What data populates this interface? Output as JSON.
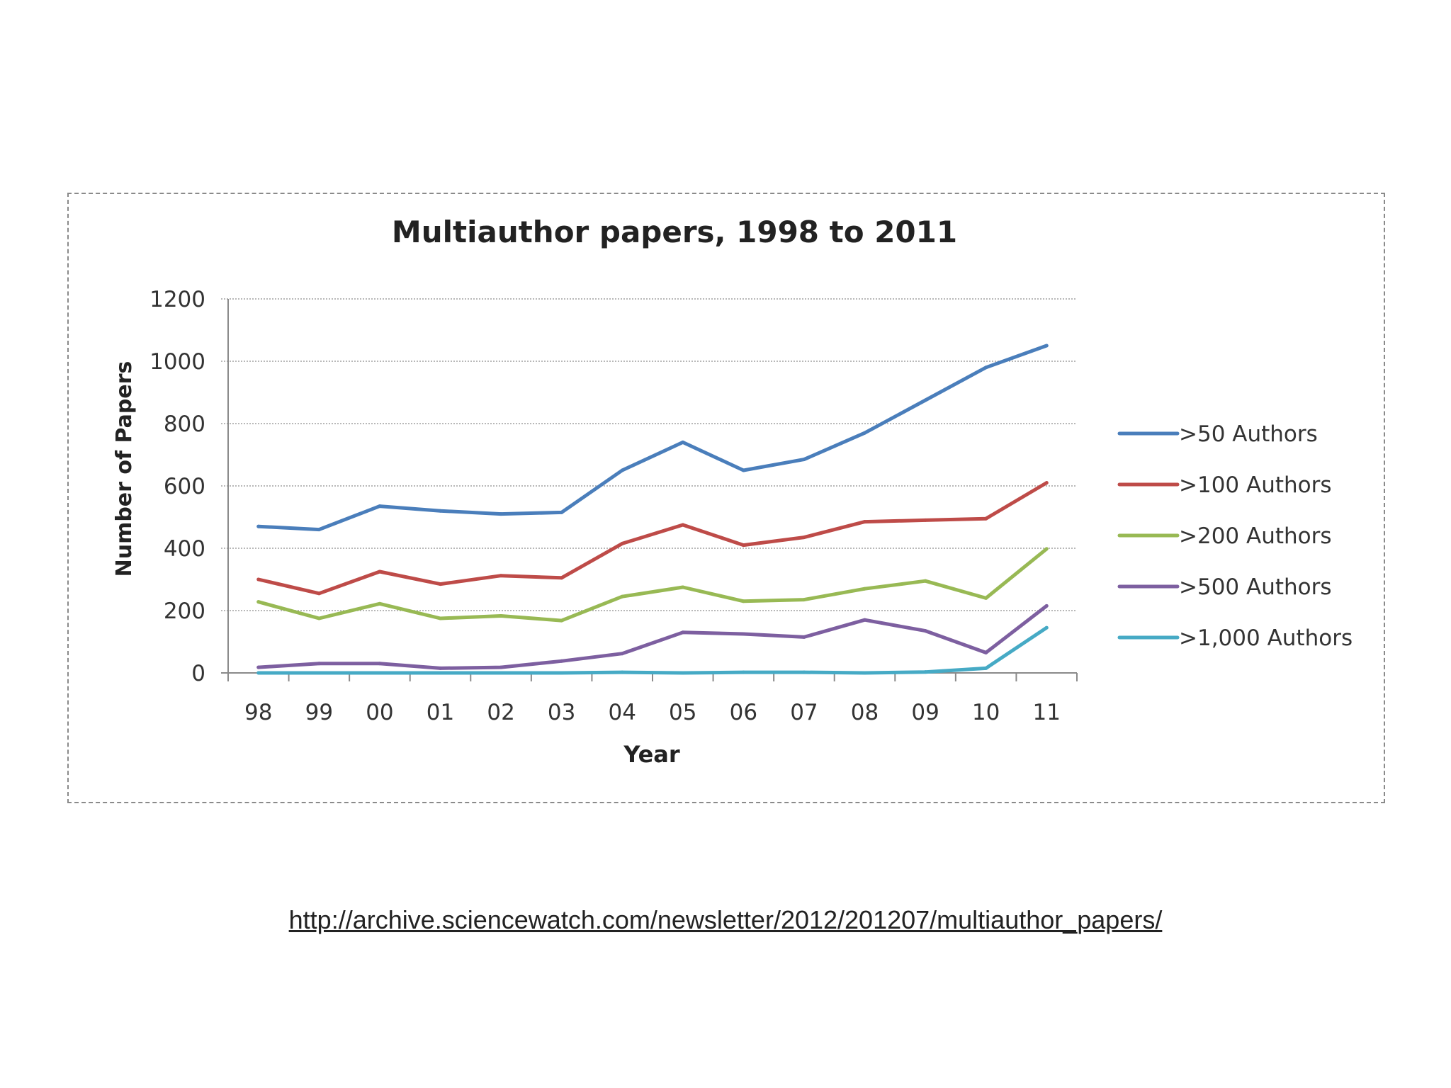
{
  "source_link": "http://archive.sciencewatch.com/newsletter/2012/201207/multiauthor_papers/",
  "chart_data": {
    "type": "line",
    "title": "Multiauthor papers, 1998 to 2011",
    "xlabel": "Year",
    "ylabel": "Number of Papers",
    "categories": [
      "98",
      "99",
      "00",
      "01",
      "02",
      "03",
      "04",
      "05",
      "06",
      "07",
      "08",
      "09",
      "10",
      "11"
    ],
    "ylim": [
      0,
      1200
    ],
    "yticks": [
      "0",
      "200",
      "400",
      "600",
      "800",
      "1000",
      "1200"
    ],
    "grid": true,
    "legend_position": "right",
    "series": [
      {
        "name": ">50 Authors",
        "color": "#4a7ebb",
        "values": [
          470,
          460,
          535,
          520,
          510,
          515,
          650,
          740,
          650,
          685,
          770,
          875,
          980,
          1050
        ]
      },
      {
        "name": ">100 Authors",
        "color": "#be4b48",
        "values": [
          300,
          255,
          325,
          285,
          312,
          305,
          415,
          475,
          410,
          435,
          485,
          490,
          495,
          610
        ]
      },
      {
        "name": ">200 Authors",
        "color": "#98b954",
        "values": [
          228,
          175,
          222,
          175,
          183,
          168,
          245,
          275,
          230,
          235,
          270,
          295,
          240,
          398
        ]
      },
      {
        "name": ">500 Authors",
        "color": "#7d5fa0",
        "values": [
          18,
          30,
          30,
          15,
          18,
          38,
          62,
          130,
          125,
          115,
          170,
          135,
          65,
          215
        ]
      },
      {
        "name": ">1,000 Authors",
        "color": "#46aac5",
        "values": [
          0,
          0,
          0,
          0,
          0,
          0,
          2,
          0,
          2,
          2,
          0,
          3,
          15,
          145
        ]
      }
    ]
  }
}
